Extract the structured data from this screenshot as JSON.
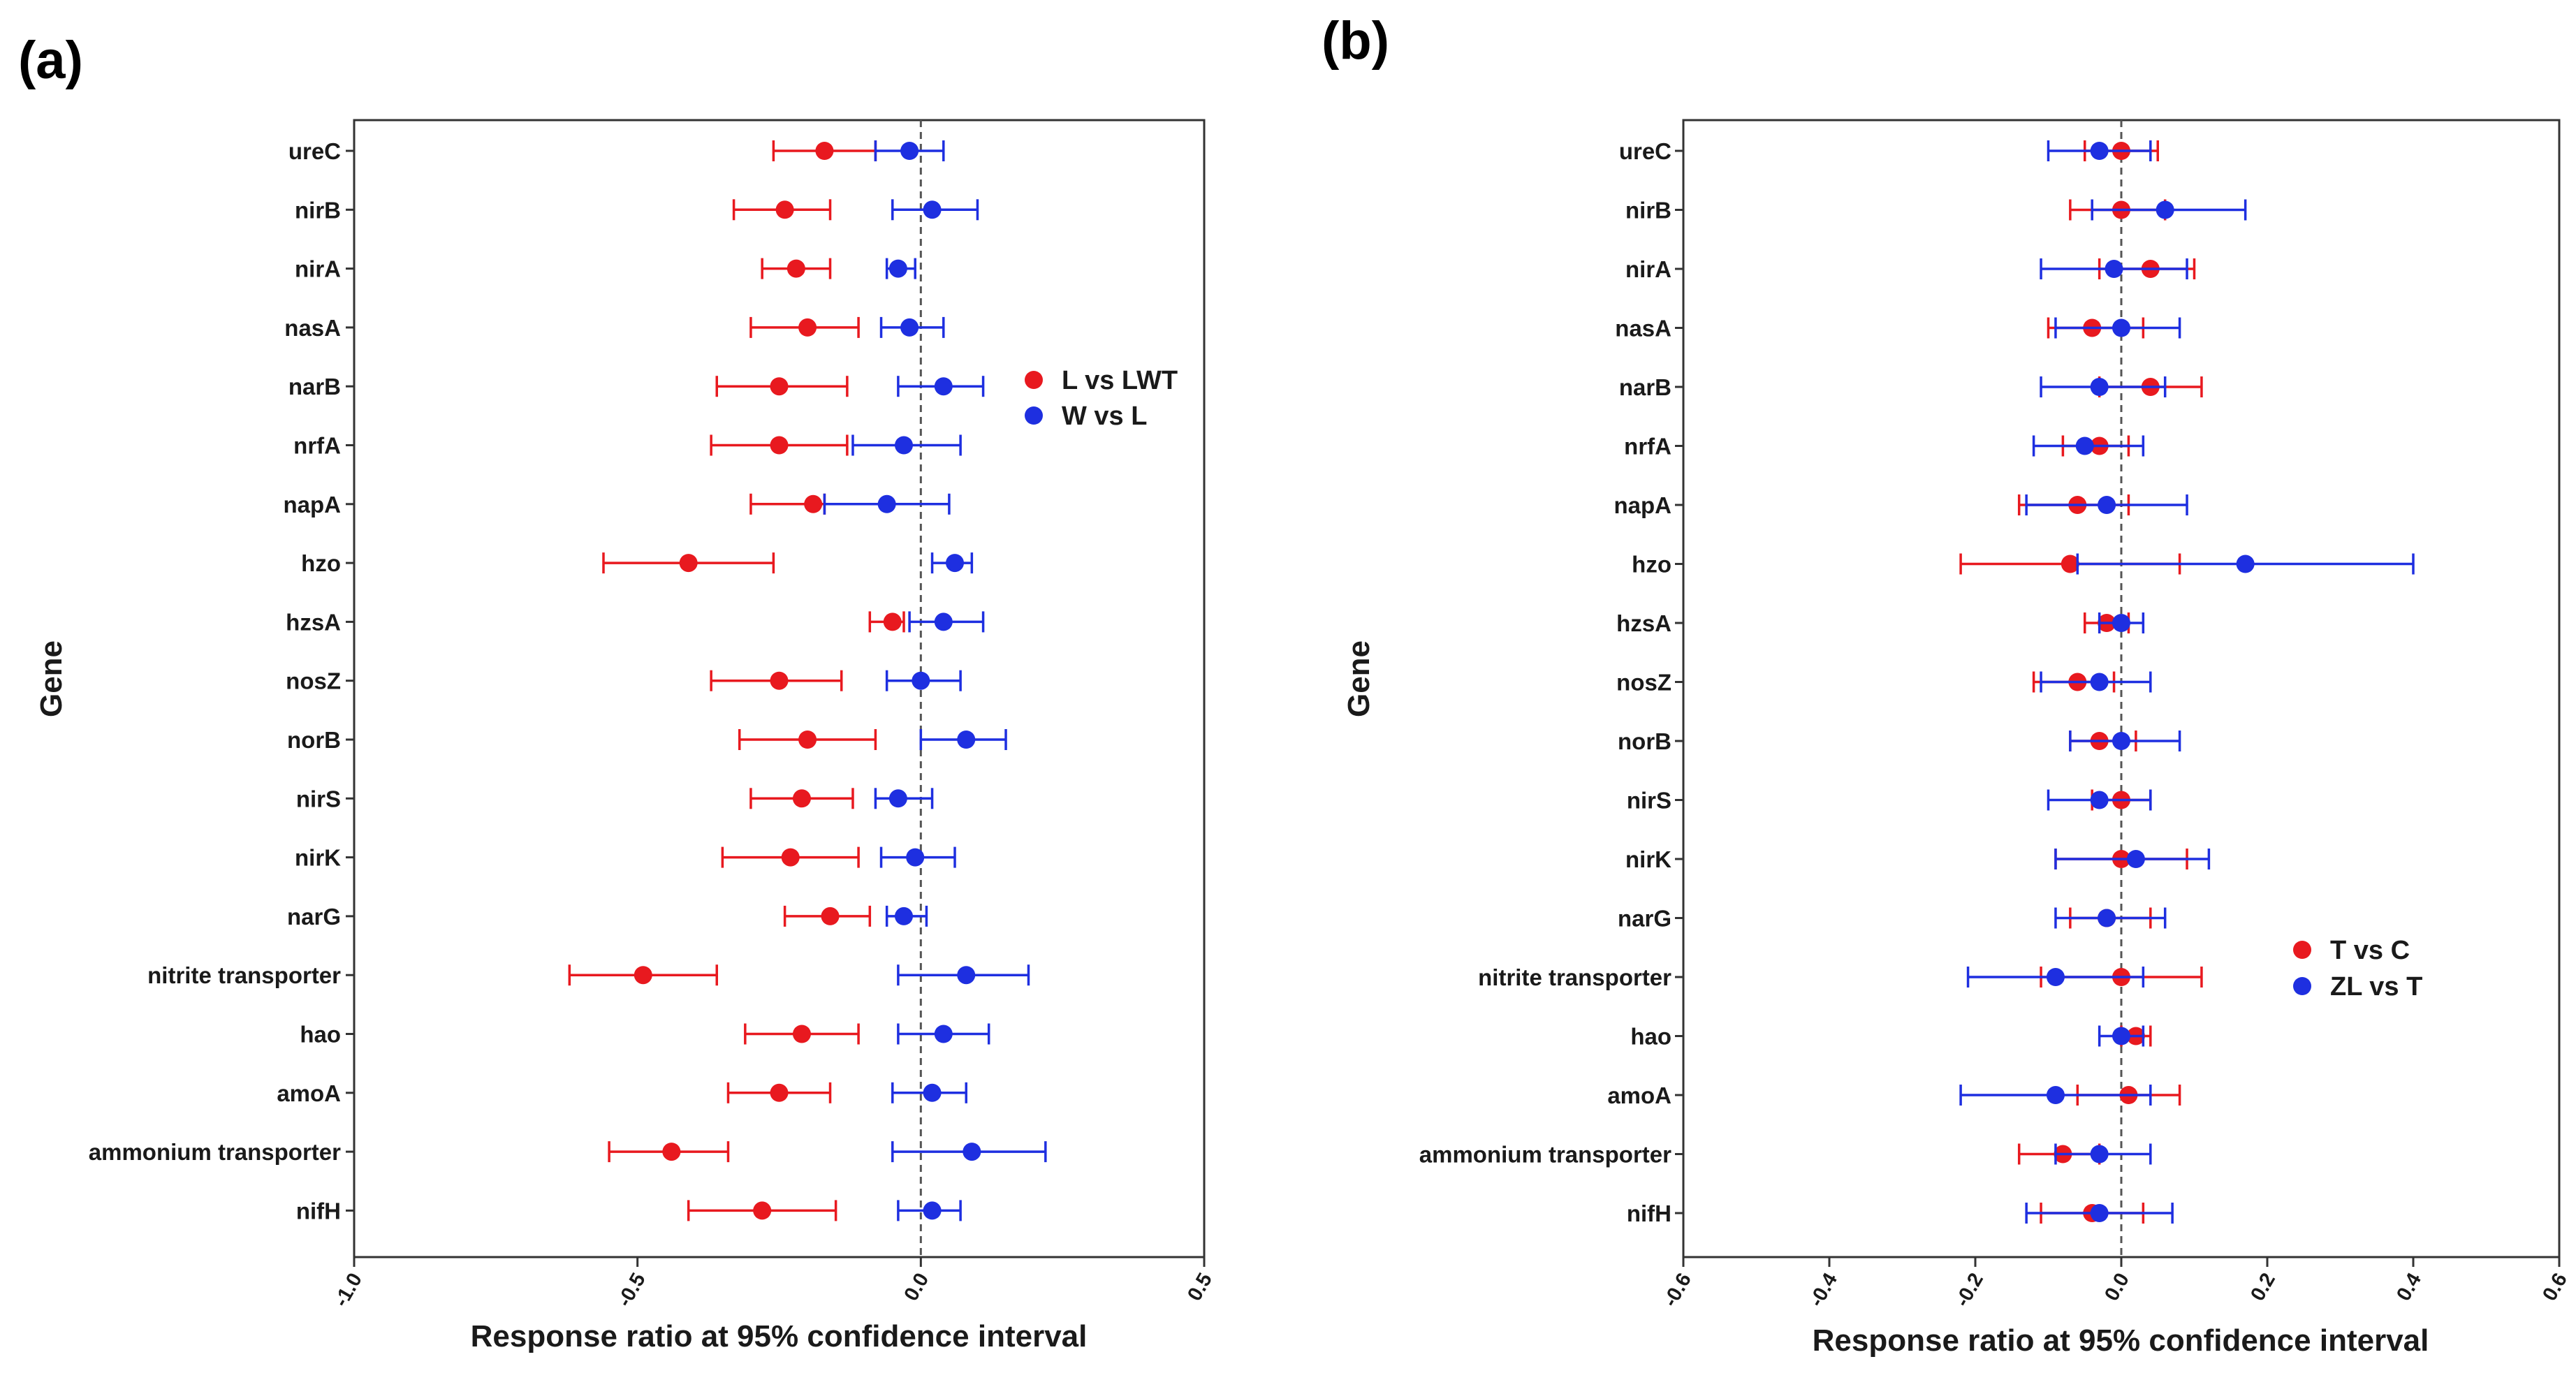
{
  "chart_data": [
    {
      "panel": "(a)",
      "type": "forest",
      "xlabel": "Response ratio at 95% confidence interval",
      "ylabel": "Gene",
      "xlim": [
        -1.0,
        0.5
      ],
      "xticks": [
        -1.0,
        -0.5,
        0.0,
        0.5
      ],
      "xtick_labels": [
        "-1.0",
        "-0.5",
        "0.0",
        "0.5"
      ],
      "reference_line": 0,
      "categories": [
        "ureC",
        "nirB",
        "nirA",
        "nasA",
        "narB",
        "nrfA",
        "napA",
        "hzo",
        "hzsA",
        "nosZ",
        "norB",
        "nirS",
        "nirK",
        "narG",
        "nitrite transporter",
        "hao",
        "amoA",
        "ammonium transporter",
        "nifH"
      ],
      "series": [
        {
          "name": "L vs LWT",
          "color": "#e8191f",
          "mean": [
            -0.17,
            -0.24,
            -0.22,
            -0.2,
            -0.25,
            -0.25,
            -0.19,
            -0.41,
            -0.05,
            -0.25,
            -0.2,
            -0.21,
            -0.23,
            -0.16,
            -0.49,
            -0.21,
            -0.25,
            -0.44,
            -0.28
          ],
          "lower": [
            -0.26,
            -0.33,
            -0.28,
            -0.3,
            -0.36,
            -0.37,
            -0.3,
            -0.56,
            -0.09,
            -0.37,
            -0.32,
            -0.3,
            -0.35,
            -0.24,
            -0.62,
            -0.31,
            -0.34,
            -0.55,
            -0.41
          ],
          "upper": [
            -0.08,
            -0.16,
            -0.16,
            -0.11,
            -0.13,
            -0.13,
            -0.17,
            -0.26,
            -0.03,
            -0.14,
            -0.08,
            -0.12,
            -0.11,
            -0.09,
            -0.36,
            -0.11,
            -0.16,
            -0.34,
            -0.15
          ]
        },
        {
          "name": "W vs L",
          "color": "#1e2fe0",
          "mean": [
            -0.02,
            0.02,
            -0.04,
            -0.02,
            0.04,
            -0.03,
            -0.06,
            0.06,
            0.04,
            0.0,
            0.08,
            -0.04,
            -0.01,
            -0.03,
            0.08,
            0.04,
            0.02,
            0.09,
            0.02
          ],
          "lower": [
            -0.08,
            -0.05,
            -0.06,
            -0.07,
            -0.04,
            -0.12,
            -0.17,
            0.02,
            -0.02,
            -0.06,
            0.0,
            -0.08,
            -0.07,
            -0.06,
            -0.04,
            -0.04,
            -0.05,
            -0.05,
            -0.04
          ],
          "upper": [
            0.04,
            0.1,
            -0.01,
            0.04,
            0.11,
            0.07,
            0.05,
            0.09,
            0.11,
            0.07,
            0.15,
            0.02,
            0.06,
            0.01,
            0.19,
            0.12,
            0.08,
            0.22,
            0.07
          ]
        }
      ],
      "legend": [
        "L vs LWT",
        "W vs L"
      ],
      "legend_position": "right-upper"
    },
    {
      "panel": "(b)",
      "type": "forest",
      "xlabel": "Response ratio at 95% confidence interval",
      "ylabel": "Gene",
      "xlim": [
        -0.6,
        0.6
      ],
      "xticks": [
        -0.6,
        -0.4,
        -0.2,
        0.0,
        0.2,
        0.4,
        0.6
      ],
      "xtick_labels": [
        "-0.6",
        "-0.4",
        "-0.2",
        "0.0",
        "0.2",
        "0.4",
        "0.6"
      ],
      "reference_line": 0,
      "categories": [
        "ureC",
        "nirB",
        "nirA",
        "nasA",
        "narB",
        "nrfA",
        "napA",
        "hzo",
        "hzsA",
        "nosZ",
        "norB",
        "nirS",
        "nirK",
        "narG",
        "nitrite transporter",
        "hao",
        "amoA",
        "ammonium transporter",
        "nifH"
      ],
      "series": [
        {
          "name": "T vs C",
          "color": "#e8191f",
          "mean": [
            0.0,
            0.0,
            0.04,
            -0.04,
            0.04,
            -0.03,
            -0.06,
            -0.07,
            -0.02,
            -0.06,
            -0.03,
            0.0,
            0.0,
            -0.02,
            0.0,
            0.02,
            0.01,
            -0.08,
            -0.04
          ],
          "lower": [
            -0.05,
            -0.07,
            -0.03,
            -0.1,
            -0.03,
            -0.08,
            -0.14,
            -0.22,
            -0.05,
            -0.12,
            -0.07,
            -0.04,
            -0.09,
            -0.07,
            -0.11,
            0.0,
            -0.06,
            -0.14,
            -0.11
          ],
          "upper": [
            0.05,
            0.06,
            0.1,
            0.03,
            0.11,
            0.01,
            0.01,
            0.08,
            0.01,
            -0.01,
            0.02,
            0.04,
            0.09,
            0.04,
            0.11,
            0.04,
            0.08,
            -0.03,
            0.03
          ]
        },
        {
          "name": "ZL vs T",
          "color": "#1e2fe0",
          "mean": [
            -0.03,
            0.06,
            -0.01,
            0.0,
            -0.03,
            -0.05,
            -0.02,
            0.17,
            0.0,
            -0.03,
            0.0,
            -0.03,
            0.02,
            -0.02,
            -0.09,
            0.0,
            -0.09,
            -0.03,
            -0.03
          ],
          "lower": [
            -0.1,
            -0.04,
            -0.11,
            -0.09,
            -0.11,
            -0.12,
            -0.13,
            -0.06,
            -0.03,
            -0.11,
            -0.07,
            -0.1,
            -0.09,
            -0.09,
            -0.21,
            -0.03,
            -0.22,
            -0.09,
            -0.13
          ],
          "upper": [
            0.04,
            0.17,
            0.09,
            0.08,
            0.06,
            0.03,
            0.09,
            0.4,
            0.03,
            0.04,
            0.08,
            0.04,
            0.12,
            0.06,
            0.03,
            0.03,
            0.04,
            0.04,
            0.07
          ]
        }
      ],
      "legend": [
        "T vs C",
        "ZL vs T"
      ],
      "legend_position": "right-lower"
    }
  ]
}
